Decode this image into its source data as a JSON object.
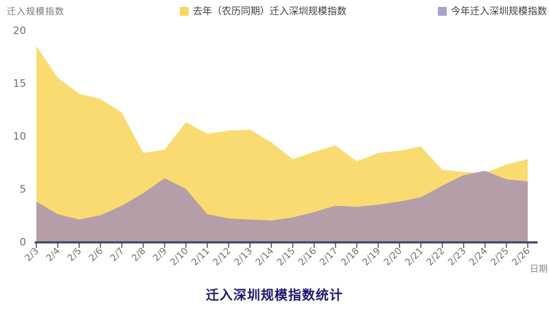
{
  "chart_data": {
    "type": "area",
    "title": "迁入深圳规模指数统计",
    "ylabel": "迁入规模指数",
    "xlabel": "日期",
    "ylim": [
      0,
      20
    ],
    "yticks": [
      0,
      5,
      10,
      15,
      20
    ],
    "grid": false,
    "legend_position": "top",
    "categories": [
      "2/3",
      "2/4",
      "2/5",
      "2/6",
      "2/7",
      "2/8",
      "2/9",
      "2/10",
      "2/11",
      "2/12",
      "2/13",
      "2/14",
      "2/15",
      "2/16",
      "2/17",
      "2/18",
      "2/19",
      "2/20",
      "2/21",
      "2/22",
      "2/23",
      "2/24",
      "2/25",
      "2/26"
    ],
    "series": [
      {
        "name": "去年（农历同期）迁入深圳规模指数",
        "legend_color": "#F5D763",
        "fill_color": "#F9DB72",
        "values": [
          18.5,
          15.5,
          14.0,
          13.5,
          12.2,
          8.4,
          8.7,
          11.3,
          10.2,
          10.5,
          10.6,
          9.4,
          7.8,
          8.5,
          9.1,
          7.6,
          8.4,
          8.6,
          9.0,
          6.8,
          6.6,
          6.5,
          7.3,
          7.8
        ]
      },
      {
        "name": "今年迁入深圳规模指数",
        "legend_color": "#A9A3C9",
        "fill_color": "#B59EA7",
        "values": [
          3.8,
          2.6,
          2.1,
          2.5,
          3.4,
          4.6,
          6.0,
          5.0,
          2.6,
          2.2,
          2.1,
          2.0,
          2.3,
          2.8,
          3.4,
          3.3,
          3.5,
          3.8,
          4.2,
          5.3,
          6.3,
          6.7,
          5.9,
          5.7
        ]
      }
    ],
    "axis_line_color": "#3F3F66",
    "tick_label_color": "#6F6F6F",
    "title_color": "#1A1A70"
  }
}
